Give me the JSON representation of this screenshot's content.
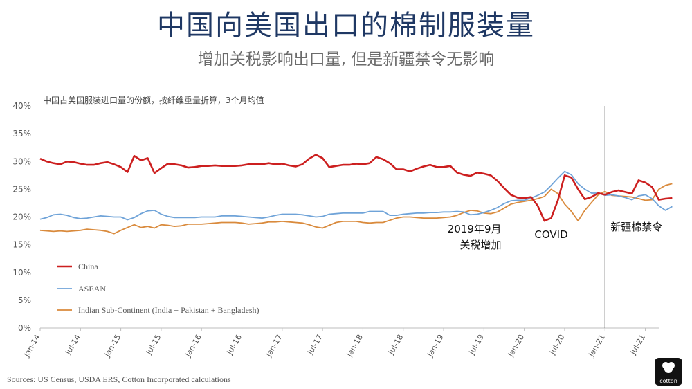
{
  "title": "中国向美国出口的棉制服装量",
  "subtitle": "增加关税影响出口量, 但是新疆禁令无影响",
  "source": "Sources: US Census, USDA ERS, Cotton Incorporated calculations",
  "logo_text": "cotton",
  "chart_data": {
    "type": "line",
    "title": "中国占美国服装进口量的份额，按纤维重量折算，3个月均值",
    "ylim": [
      0,
      40
    ],
    "yticks": [
      "0%",
      "5%",
      "10%",
      "15%",
      "20%",
      "25%",
      "30%",
      "35%",
      "40%"
    ],
    "xticks": [
      "Jan-14",
      "Jul-14",
      "Jan-15",
      "Jul-15",
      "Jan-16",
      "Jul-16",
      "Jan-17",
      "Jul-17",
      "Jan-18",
      "Jul-18",
      "Jan-19",
      "Jul-19",
      "Jan-20",
      "Jul-20",
      "Jan-21",
      "Jul-21"
    ],
    "x_start": "2014-01",
    "x_end": "2021-09",
    "annotations": [
      {
        "date": "2019-10",
        "line1": "2019年9月",
        "line2": "关税增加"
      },
      {
        "date": "2020-05",
        "line1": "COVID",
        "line2": ""
      },
      {
        "date": "2021-01",
        "line1": "新疆棉禁令",
        "line2": ""
      }
    ],
    "series": [
      {
        "name": "China",
        "color": "#cc1f1f",
        "values": [
          30.5,
          30.0,
          29.7,
          29.5,
          30.0,
          29.9,
          29.6,
          29.4,
          29.4,
          29.7,
          29.9,
          29.5,
          29.0,
          28.1,
          31.0,
          30.2,
          30.6,
          27.9,
          28.8,
          29.6,
          29.5,
          29.3,
          28.9,
          29.0,
          29.2,
          29.2,
          29.3,
          29.2,
          29.2,
          29.2,
          29.3,
          29.5,
          29.5,
          29.5,
          29.7,
          29.5,
          29.6,
          29.3,
          29.1,
          29.5,
          30.5,
          31.2,
          30.6,
          29.0,
          29.2,
          29.4,
          29.4,
          29.6,
          29.5,
          29.7,
          30.8,
          30.4,
          29.7,
          28.6,
          28.6,
          28.2,
          28.7,
          29.1,
          29.4,
          29.0,
          29.0,
          29.2,
          28.0,
          27.6,
          27.4,
          28.0,
          27.8,
          27.5,
          26.5,
          25.2,
          24.0,
          23.5,
          23.4,
          23.6,
          22.0,
          19.3,
          19.8,
          23.0,
          27.5,
          27.1,
          25.0,
          23.2,
          23.6,
          24.3,
          24.0,
          24.5,
          24.8,
          24.5,
          24.2,
          26.6,
          26.2,
          25.4,
          23.1,
          23.3,
          23.4
        ]
      },
      {
        "name": "ASEAN",
        "color": "#6fa3d8",
        "values": [
          19.6,
          19.9,
          20.4,
          20.5,
          20.3,
          19.9,
          19.7,
          19.8,
          20.0,
          20.2,
          20.1,
          20.0,
          20.0,
          19.5,
          19.9,
          20.6,
          21.1,
          21.2,
          20.5,
          20.1,
          19.9,
          19.9,
          19.9,
          19.9,
          20.0,
          20.0,
          20.0,
          20.2,
          20.2,
          20.2,
          20.1,
          20.0,
          19.9,
          19.8,
          20.0,
          20.3,
          20.5,
          20.5,
          20.5,
          20.4,
          20.2,
          20.0,
          20.1,
          20.5,
          20.6,
          20.7,
          20.7,
          20.7,
          20.7,
          21.0,
          21.0,
          21.0,
          20.3,
          20.3,
          20.5,
          20.6,
          20.7,
          20.7,
          20.8,
          20.8,
          20.9,
          20.9,
          21.0,
          20.9,
          20.4,
          20.5,
          20.8,
          21.2,
          21.7,
          22.4,
          22.9,
          23.0,
          23.0,
          23.4,
          23.9,
          24.5,
          25.7,
          27.0,
          28.2,
          27.6,
          26.0,
          25.0,
          24.3,
          24.3,
          23.9,
          24.0,
          23.8,
          23.5,
          23.1,
          23.8,
          24.0,
          23.3,
          22.0,
          21.2,
          21.9
        ]
      },
      {
        "name": "Indian Sub-Continent (India + Pakistan + Bangladesh)",
        "color": "#d98a3c",
        "values": [
          17.6,
          17.5,
          17.4,
          17.5,
          17.4,
          17.5,
          17.6,
          17.8,
          17.7,
          17.6,
          17.4,
          17.0,
          17.6,
          18.1,
          18.6,
          18.1,
          18.3,
          18.0,
          18.6,
          18.5,
          18.3,
          18.4,
          18.7,
          18.7,
          18.7,
          18.8,
          18.9,
          19.0,
          19.0,
          19.0,
          18.9,
          18.7,
          18.8,
          18.9,
          19.1,
          19.1,
          19.2,
          19.1,
          19.0,
          18.9,
          18.6,
          18.2,
          18.0,
          18.5,
          19.0,
          19.2,
          19.2,
          19.2,
          19.0,
          18.9,
          19.0,
          19.0,
          19.4,
          19.8,
          20.0,
          20.0,
          19.9,
          19.8,
          19.8,
          19.8,
          19.9,
          20.0,
          20.3,
          20.8,
          21.2,
          21.1,
          20.7,
          20.6,
          20.9,
          21.6,
          22.3,
          22.6,
          22.8,
          23.0,
          23.3,
          23.7,
          25.0,
          24.2,
          22.3,
          21.0,
          19.3,
          21.2,
          22.6,
          24.0,
          24.6,
          23.9,
          23.8,
          23.7,
          23.6,
          23.3,
          23.0,
          23.1,
          25.0,
          25.7,
          26.0
        ]
      }
    ]
  }
}
